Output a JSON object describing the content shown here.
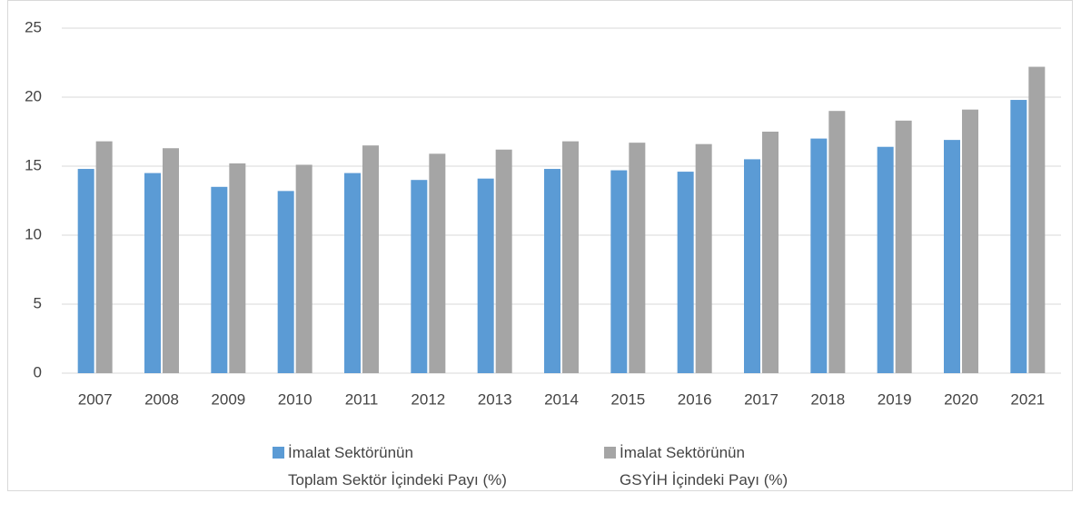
{
  "chart_data": {
    "type": "bar",
    "categories": [
      "2007",
      "2008",
      "2009",
      "2010",
      "2011",
      "2012",
      "2013",
      "2014",
      "2015",
      "2016",
      "2017",
      "2018",
      "2019",
      "2020",
      "2021"
    ],
    "series": [
      {
        "name": "İmalat Sektörünün\nToplam Sektör İçindeki Payı (%)",
        "color": "#5b9bd5",
        "values": [
          14.8,
          14.5,
          13.5,
          13.2,
          14.5,
          14.0,
          14.1,
          14.8,
          14.7,
          14.6,
          15.5,
          17.0,
          16.4,
          16.9,
          19.8
        ]
      },
      {
        "name": "İmalat Sektörünün\nGSYİH İçindeki Payı (%)",
        "color": "#a5a5a5",
        "values": [
          16.8,
          16.3,
          15.2,
          15.1,
          16.5,
          15.9,
          16.2,
          16.8,
          16.7,
          16.6,
          17.5,
          19.0,
          18.3,
          19.1,
          22.2
        ]
      }
    ],
    "ylim": [
      0,
      25
    ],
    "yticks": [
      0,
      5,
      10,
      15,
      20,
      25
    ],
    "grid": true
  }
}
